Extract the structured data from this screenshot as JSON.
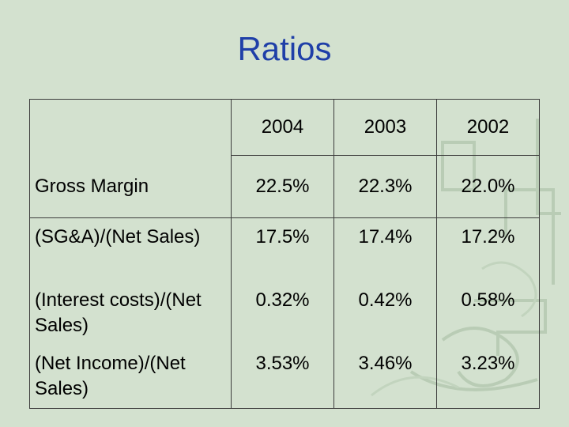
{
  "slide": {
    "title": "Ratios"
  },
  "table": {
    "years": [
      "2004",
      "2003",
      "2002"
    ],
    "rows": [
      {
        "label": "Gross Margin",
        "values": [
          "22.5%",
          "22.3%",
          "22.0%"
        ]
      },
      {
        "label": "(SG&A)/(Net Sales)",
        "values": [
          "17.5%",
          "17.4%",
          "17.2%"
        ]
      },
      {
        "label": "(Interest costs)/(Net Sales)",
        "values": [
          "0.32%",
          "0.42%",
          "0.58%"
        ]
      },
      {
        "label": "(Net Income)/(Net Sales)",
        "values": [
          "3.53%",
          "3.46%",
          "3.23%"
        ]
      }
    ]
  },
  "colors": {
    "background": "#d3e1cf",
    "title": "#1f3fa8",
    "decoration": "#b6c9b2"
  }
}
